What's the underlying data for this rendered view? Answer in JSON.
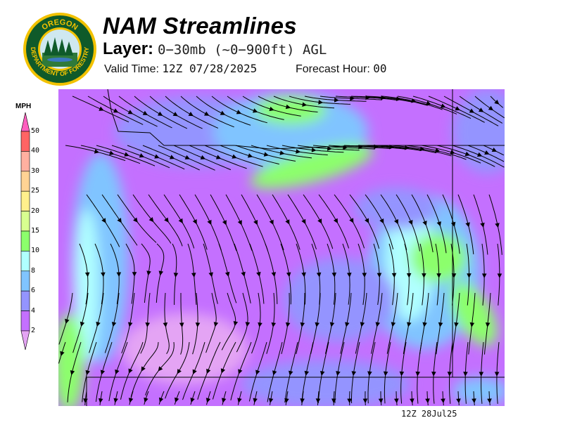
{
  "header": {
    "title": "NAM Streamlines",
    "layer_label": "Layer:",
    "layer_value": "0−30mb (~0−900ft) AGL",
    "valid_label": "Valid Time:",
    "valid_value": "12Z 07/28/2025",
    "forecast_label": "Forecast Hour:",
    "forecast_value": "00"
  },
  "logo": {
    "top_text": "OREGON",
    "bottom_text": "DEPARTMENT OF FORESTRY"
  },
  "legend": {
    "units": "MPH",
    "ticks": [
      "50",
      "40",
      "30",
      "25",
      "20",
      "15",
      "10",
      "8",
      "6",
      "4",
      "2"
    ],
    "colors": {
      "above_50": "#ff5fbf",
      "40-50": "#ff6464",
      "30-40": "#ffb0a0",
      "25-30": "#ffd394",
      "20-25": "#fff08c",
      "15-20": "#d8ff90",
      "10-15": "#8cff6c",
      "8-10": "#b0ffff",
      "6-8": "#80c4ff",
      "4-6": "#9494ff",
      "2-4": "#c470ff",
      "below_2": "#e4a4f4"
    }
  },
  "footer": {
    "timestamp": "12Z 28Jul25"
  }
}
